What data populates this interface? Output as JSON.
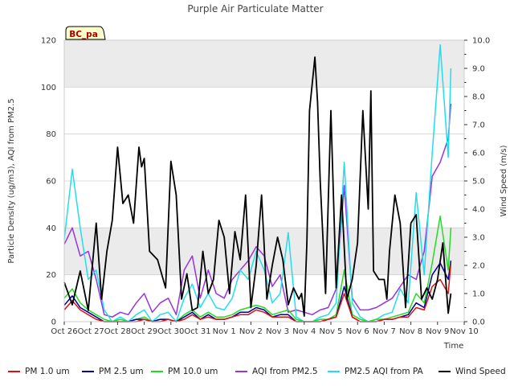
{
  "chart_data": {
    "type": "line",
    "title": "Purple Air Particulate Matter",
    "badge": "BC_pa",
    "xlabel": "Time",
    "ylabel_left": "Particle Density (ug/m3), AQI from PM2.5",
    "ylabel_right": "Wind Speed (m/s)",
    "ylim_left": [
      0,
      120
    ],
    "ylim_right": [
      0,
      10
    ],
    "xlim": [
      0,
      15
    ],
    "x_ticks": [
      {
        "x": 0,
        "label": "Oct 26"
      },
      {
        "x": 1,
        "label": "Oct 27"
      },
      {
        "x": 2,
        "label": "Oct 28"
      },
      {
        "x": 3,
        "label": "Oct 29"
      },
      {
        "x": 4,
        "label": "Oct 30"
      },
      {
        "x": 5,
        "label": "Oct 31"
      },
      {
        "x": 6,
        "label": "Nov 1"
      },
      {
        "x": 7,
        "label": "Nov 2"
      },
      {
        "x": 8,
        "label": "Nov 3"
      },
      {
        "x": 9,
        "label": "Nov 4"
      },
      {
        "x": 10,
        "label": "Nov 5"
      },
      {
        "x": 11,
        "label": "Nov 6"
      },
      {
        "x": 12,
        "label": "Nov 7"
      },
      {
        "x": 13,
        "label": "Nov 8"
      },
      {
        "x": 14,
        "label": "Nov 9"
      },
      {
        "x": 15,
        "label": "Nov 10"
      }
    ],
    "y_ticks_left": [
      {
        "v": 0,
        "label": "0"
      },
      {
        "v": 20,
        "label": "20"
      },
      {
        "v": 40,
        "label": "40"
      },
      {
        "v": 60,
        "label": "60"
      },
      {
        "v": 80,
        "label": "80"
      },
      {
        "v": 100,
        "label": "100"
      },
      {
        "v": 120,
        "label": "120"
      }
    ],
    "y_ticks_right": [
      {
        "v": 0,
        "label": "0.0"
      },
      {
        "v": 1,
        "label": "1.0"
      },
      {
        "v": 2,
        "label": "2.0"
      },
      {
        "v": 3,
        "label": "3.0"
      },
      {
        "v": 4,
        "label": "4.0"
      },
      {
        "v": 5,
        "label": "5.0"
      },
      {
        "v": 6,
        "label": "6.0"
      },
      {
        "v": 7,
        "label": "7.0"
      },
      {
        "v": 8,
        "label": "8.0"
      },
      {
        "v": 9,
        "label": "9.0"
      },
      {
        "v": 10,
        "label": "10.0"
      }
    ],
    "bands": [
      [
        20,
        40
      ],
      [
        100,
        120
      ]
    ],
    "grid": true,
    "legend_position": "bottom",
    "series": [
      {
        "name": "AQI from PM2.5",
        "axis": "left",
        "color": "#9933dd",
        "x": [
          0,
          0.3,
          0.6,
          0.9,
          1.2,
          1.5,
          1.8,
          2.1,
          2.4,
          2.7,
          3.0,
          3.3,
          3.6,
          3.9,
          4.2,
          4.5,
          4.8,
          5.1,
          5.4,
          5.7,
          6.0,
          6.3,
          6.6,
          6.9,
          7.2,
          7.5,
          7.8,
          8.1,
          8.4,
          8.7,
          9.0,
          9.3,
          9.6,
          9.9,
          10.2,
          10.5,
          10.8,
          11.1,
          11.4,
          11.7,
          12.0,
          12.3,
          12.6,
          12.9,
          13.2,
          13.5,
          13.8,
          14.1,
          14.4,
          14.5
        ],
        "values": [
          33,
          40,
          28,
          30,
          18,
          3,
          2,
          4,
          3,
          8,
          12,
          4,
          8,
          10,
          3,
          22,
          28,
          10,
          22,
          12,
          10,
          18,
          22,
          26,
          32,
          28,
          15,
          20,
          4,
          5,
          4,
          3,
          5,
          6,
          14,
          58,
          10,
          5,
          5,
          6,
          8,
          10,
          15,
          20,
          18,
          30,
          62,
          68,
          78,
          93
        ]
      },
      {
        "name": "PM2.5 AQI from PA",
        "axis": "left",
        "color": "#22ddee",
        "x": [
          0,
          0.3,
          0.6,
          0.9,
          1.2,
          1.5,
          1.8,
          2.1,
          2.4,
          2.7,
          3.0,
          3.3,
          3.6,
          3.9,
          4.2,
          4.5,
          4.8,
          5.1,
          5.4,
          5.7,
          6.0,
          6.3,
          6.6,
          6.9,
          7.2,
          7.5,
          7.8,
          8.1,
          8.4,
          8.7,
          9.0,
          9.3,
          9.6,
          9.9,
          10.2,
          10.5,
          10.8,
          11.1,
          11.4,
          11.7,
          12.0,
          12.3,
          12.6,
          12.9,
          13.2,
          13.5,
          13.8,
          14.1,
          14.4,
          14.5
        ],
        "values": [
          35,
          65,
          40,
          18,
          22,
          5,
          0,
          2,
          0,
          3,
          5,
          0,
          3,
          4,
          0,
          10,
          16,
          6,
          12,
          6,
          5,
          10,
          22,
          18,
          30,
          22,
          8,
          12,
          38,
          2,
          0,
          0,
          2,
          3,
          8,
          68,
          8,
          2,
          0,
          1,
          3,
          4,
          14,
          8,
          55,
          20,
          72,
          118,
          70,
          108
        ]
      },
      {
        "name": "PM 10.0 um",
        "axis": "left",
        "color": "#22dd22",
        "x": [
          0,
          0.3,
          0.6,
          0.9,
          1.2,
          1.5,
          1.8,
          2.1,
          2.4,
          2.7,
          3.0,
          3.3,
          3.6,
          3.9,
          4.2,
          4.5,
          4.8,
          5.1,
          5.4,
          5.7,
          6.0,
          6.3,
          6.6,
          6.9,
          7.2,
          7.5,
          7.8,
          8.1,
          8.4,
          8.7,
          9.0,
          9.3,
          9.6,
          9.9,
          10.2,
          10.5,
          10.8,
          11.1,
          11.4,
          11.7,
          12.0,
          12.3,
          12.6,
          12.9,
          13.2,
          13.5,
          13.8,
          14.1,
          14.4,
          14.5
        ],
        "values": [
          10,
          14,
          8,
          5,
          3,
          1,
          0,
          1,
          0,
          1,
          2,
          0,
          1,
          1,
          0,
          3,
          5,
          2,
          4,
          2,
          2,
          3,
          5,
          6,
          7,
          6,
          3,
          4,
          5,
          1,
          0,
          0,
          1,
          1,
          3,
          22,
          3,
          1,
          0,
          1,
          1,
          2,
          3,
          4,
          12,
          8,
          25,
          45,
          22,
          40
        ]
      },
      {
        "name": "PM 2.5 um",
        "axis": "left",
        "color": "#000099",
        "x": [
          0,
          0.3,
          0.6,
          0.9,
          1.2,
          1.5,
          1.8,
          2.1,
          2.4,
          2.7,
          3.0,
          3.3,
          3.6,
          3.9,
          4.2,
          4.5,
          4.8,
          5.1,
          5.4,
          5.7,
          6.0,
          6.3,
          6.6,
          6.9,
          7.2,
          7.5,
          7.8,
          8.1,
          8.4,
          8.7,
          9.0,
          9.3,
          9.6,
          9.9,
          10.2,
          10.5,
          10.8,
          11.1,
          11.4,
          11.7,
          12.0,
          12.3,
          12.6,
          12.9,
          13.2,
          13.5,
          13.8,
          14.1,
          14.4,
          14.5
        ],
        "values": [
          7,
          11,
          6,
          4,
          2,
          0,
          0,
          0,
          0,
          1,
          1,
          0,
          1,
          1,
          0,
          2,
          4,
          1,
          3,
          1,
          1,
          2,
          4,
          4,
          6,
          5,
          2,
          3,
          3,
          0,
          0,
          0,
          0,
          1,
          2,
          15,
          2,
          0,
          0,
          0,
          1,
          1,
          2,
          3,
          8,
          6,
          20,
          25,
          18,
          26
        ]
      },
      {
        "name": "PM 1.0 um",
        "axis": "left",
        "color": "#dd1111",
        "x": [
          0,
          0.3,
          0.6,
          0.9,
          1.2,
          1.5,
          1.8,
          2.1,
          2.4,
          2.7,
          3.0,
          3.3,
          3.6,
          3.9,
          4.2,
          4.5,
          4.8,
          5.1,
          5.4,
          5.7,
          6.0,
          6.3,
          6.6,
          6.9,
          7.2,
          7.5,
          7.8,
          8.1,
          8.4,
          8.7,
          9.0,
          9.3,
          9.6,
          9.9,
          10.2,
          10.5,
          10.8,
          11.1,
          11.4,
          11.7,
          12.0,
          12.3,
          12.6,
          12.9,
          13.2,
          13.5,
          13.8,
          14.1,
          14.4,
          14.5
        ],
        "values": [
          5,
          9,
          5,
          3,
          1,
          0,
          0,
          0,
          0,
          0,
          1,
          0,
          0,
          1,
          0,
          1,
          3,
          1,
          2,
          1,
          1,
          2,
          3,
          3,
          5,
          4,
          2,
          2,
          2,
          0,
          0,
          0,
          0,
          1,
          2,
          12,
          2,
          0,
          0,
          0,
          1,
          1,
          2,
          2,
          6,
          5,
          15,
          18,
          12,
          25
        ]
      },
      {
        "name": "Wind Speed",
        "axis": "right",
        "color": "#000000",
        "x": [
          0,
          0.3,
          0.6,
          0.9,
          1.2,
          1.4,
          1.6,
          1.8,
          2.0,
          2.2,
          2.4,
          2.6,
          2.8,
          2.9,
          3.0,
          3.2,
          3.5,
          3.8,
          4.0,
          4.2,
          4.4,
          4.6,
          4.8,
          5.0,
          5.2,
          5.4,
          5.6,
          5.8,
          6.0,
          6.2,
          6.4,
          6.6,
          6.8,
          7.0,
          7.2,
          7.4,
          7.6,
          7.8,
          8.0,
          8.2,
          8.4,
          8.6,
          8.8,
          8.9,
          9.0,
          9.1,
          9.2,
          9.4,
          9.5,
          9.6,
          9.8,
          10.0,
          10.2,
          10.4,
          10.6,
          10.8,
          11.0,
          11.2,
          11.4,
          11.5,
          11.6,
          11.8,
          12.0,
          12.1,
          12.2,
          12.4,
          12.6,
          12.8,
          13.0,
          13.2,
          13.4,
          13.6,
          13.8,
          14.0,
          14.2,
          14.4,
          14.5
        ],
        "values": [
          1.4,
          0.6,
          1.8,
          0.4,
          3.5,
          0.8,
          2.5,
          3.6,
          6.2,
          4.2,
          4.5,
          3.5,
          6.2,
          5.5,
          5.8,
          2.5,
          2.2,
          1.2,
          5.7,
          4.5,
          0.8,
          1.7,
          0.4,
          0.5,
          2.5,
          1.0,
          1.5,
          3.6,
          3.0,
          1.0,
          3.2,
          2.2,
          4.5,
          0.5,
          2.0,
          4.5,
          0.8,
          2.0,
          3.0,
          2.2,
          0.6,
          1.2,
          0.8,
          1.0,
          0.2,
          2.8,
          7.5,
          9.4,
          7.8,
          5.0,
          1.0,
          7.5,
          1.2,
          4.5,
          0.8,
          1.5,
          2.8,
          7.5,
          4.0,
          8.2,
          1.8,
          1.5,
          1.5,
          0.8,
          2.5,
          4.5,
          3.5,
          0.5,
          3.5,
          3.8,
          0.8,
          1.2,
          0.8,
          1.5,
          2.8,
          0.3,
          1.0
        ]
      }
    ]
  }
}
